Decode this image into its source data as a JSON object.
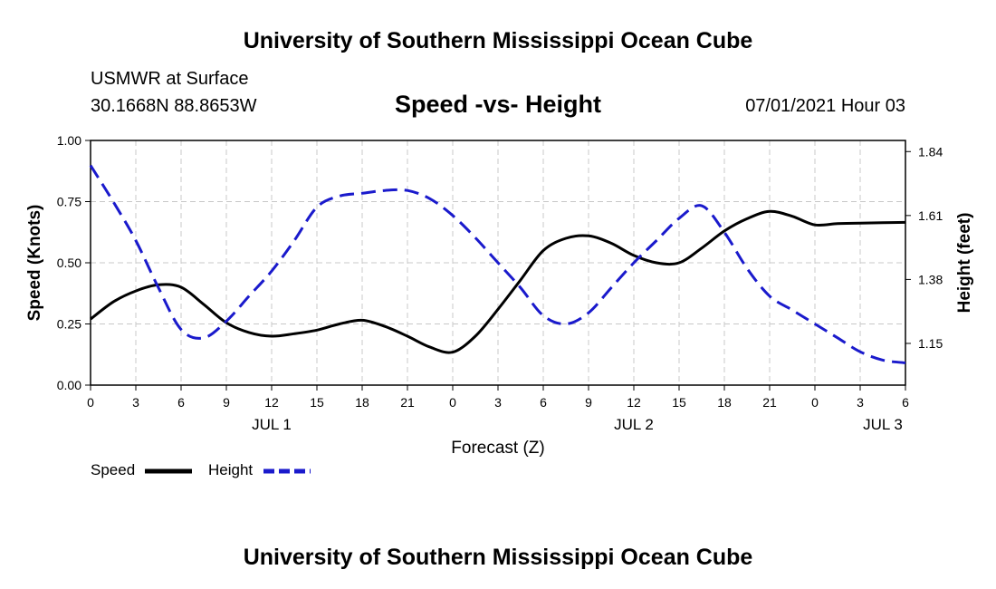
{
  "header": {
    "title": "University of Southern Mississippi Ocean Cube",
    "station": "USMWR at Surface",
    "coords": "30.1668N  88.8653W",
    "subtitle": "Speed -vs- Height",
    "datetime": "07/01/2021 Hour 03"
  },
  "footer": {
    "title": "University of Southern Mississippi Ocean Cube"
  },
  "legend": {
    "speed_label": "Speed",
    "height_label": "Height"
  },
  "colors": {
    "speed": "#000000",
    "height": "#1a1acc",
    "grid": "#c8c8c8"
  },
  "chart_data": {
    "type": "line",
    "title": "Speed -vs- Height",
    "xlabel": "Forecast (Z)",
    "ylabel": "Speed (Knots)",
    "y2label": "Height (feet)",
    "xlim": [
      0,
      54
    ],
    "ylim": [
      0,
      1.0
    ],
    "y2lim": [
      1.0,
      1.88
    ],
    "x_ticks": [
      0,
      3,
      6,
      9,
      12,
      15,
      18,
      21,
      24,
      27,
      30,
      33,
      36,
      39,
      42,
      45,
      48,
      51,
      54
    ],
    "x_tick_labels": [
      "0",
      "3",
      "6",
      "9",
      "12",
      "15",
      "18",
      "21",
      "0",
      "3",
      "6",
      "9",
      "12",
      "15",
      "18",
      "21",
      "0",
      "3",
      "6"
    ],
    "date_labels": [
      {
        "x": 12,
        "label": "JUL 1"
      },
      {
        "x": 36,
        "label": "JUL 2"
      },
      {
        "x": 52.5,
        "label": "JUL 3"
      }
    ],
    "y_ticks": [
      0.0,
      0.25,
      0.5,
      0.75,
      1.0
    ],
    "y_tick_labels": [
      "0.00",
      "0.25",
      "0.50",
      "0.75",
      "1.00"
    ],
    "y2_ticks": [
      1.15,
      1.38,
      1.61,
      1.84
    ],
    "y2_tick_labels": [
      "1.15",
      "1.38",
      "1.61",
      "1.84"
    ],
    "grid": true,
    "series": [
      {
        "name": "Speed",
        "axis": "left",
        "style": "solid",
        "x": [
          0,
          1.5,
          3,
          4.5,
          6,
          7.5,
          9,
          10.5,
          12,
          13.5,
          15,
          16.5,
          18,
          19.5,
          21,
          22.5,
          24,
          25.5,
          27,
          28.5,
          30,
          31.5,
          33,
          34.5,
          36,
          37.5,
          39,
          40.5,
          42,
          43.5,
          45,
          46.5,
          48,
          49.5,
          51,
          52.5,
          54
        ],
        "values": [
          0.27,
          0.34,
          0.385,
          0.41,
          0.4,
          0.33,
          0.255,
          0.215,
          0.2,
          0.21,
          0.225,
          0.25,
          0.265,
          0.24,
          0.2,
          0.155,
          0.135,
          0.2,
          0.31,
          0.43,
          0.55,
          0.6,
          0.61,
          0.58,
          0.53,
          0.5,
          0.5,
          0.56,
          0.63,
          0.68,
          0.71,
          0.69,
          0.655,
          0.66,
          0.662,
          0.664,
          0.665
        ]
      },
      {
        "name": "Height",
        "axis": "right",
        "style": "dashed",
        "x": [
          0,
          1.5,
          3,
          4.5,
          6,
          7.5,
          9,
          10.5,
          12,
          13.5,
          15,
          16.5,
          18,
          19.5,
          21,
          22.5,
          24,
          25.5,
          27,
          28.5,
          30,
          31.5,
          33,
          34.5,
          36,
          37.5,
          39,
          40.5,
          42,
          43.5,
          45,
          46.5,
          48,
          49.5,
          51,
          52.5,
          54
        ],
        "values": [
          1.79,
          1.66,
          1.52,
          1.35,
          1.2,
          1.17,
          1.23,
          1.32,
          1.41,
          1.52,
          1.64,
          1.68,
          1.69,
          1.7,
          1.7,
          1.67,
          1.61,
          1.53,
          1.44,
          1.35,
          1.25,
          1.22,
          1.26,
          1.35,
          1.44,
          1.52,
          1.6,
          1.645,
          1.55,
          1.42,
          1.32,
          1.27,
          1.22,
          1.17,
          1.12,
          1.09,
          1.08
        ]
      }
    ]
  }
}
